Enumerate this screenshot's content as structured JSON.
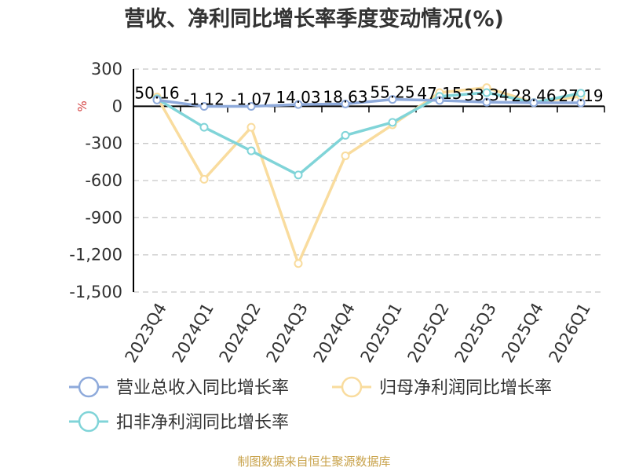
{
  "title": "营收、净利同比增长率季度变动情况(%)",
  "source": "制图数据来自恒生聚源数据库",
  "chart_data": {
    "type": "line",
    "title": "营收、净利同比增长率季度变动情况(%)",
    "ylabel": "%",
    "categories": [
      "2023Q4",
      "2024Q1",
      "2024Q2",
      "2024Q3",
      "2024Q4",
      "2025Q1",
      "2025Q2",
      "2025Q3",
      "2025Q4",
      "2026Q1"
    ],
    "ylim": [
      -1500,
      300
    ],
    "yticks": [
      300,
      0,
      -300,
      -600,
      -900,
      -1200,
      -1500
    ],
    "ytick_labels": [
      "300",
      "0",
      "-300",
      "-600",
      "-900",
      "-1,200",
      "-1,500"
    ],
    "grid": "horizontal dashed",
    "legend_position": "bottom",
    "series": [
      {
        "name": "营业总收入同比增长率",
        "color": "#8eaadb",
        "values": [
          50.16,
          -1.12,
          -1.07,
          14.03,
          18.63,
          55.25,
          47.15,
          33.34,
          28.46,
          27.19
        ],
        "labels": [
          "50.16",
          "-1.12",
          "-1.07",
          "14.03",
          "18.63",
          "55.25",
          "47.15",
          "33.34",
          "28.46",
          "27.19"
        ]
      },
      {
        "name": "归母净利润同比增长率",
        "color": "#f9dc9e",
        "values": [
          75,
          -590,
          -170,
          -1270,
          -400,
          -150,
          110,
          150,
          30,
          80
        ]
      },
      {
        "name": "扣非净利润同比增长率",
        "color": "#80d4d8",
        "values": [
          60,
          -170,
          -360,
          -555,
          -235,
          -130,
          80,
          110,
          30,
          105
        ]
      }
    ]
  }
}
